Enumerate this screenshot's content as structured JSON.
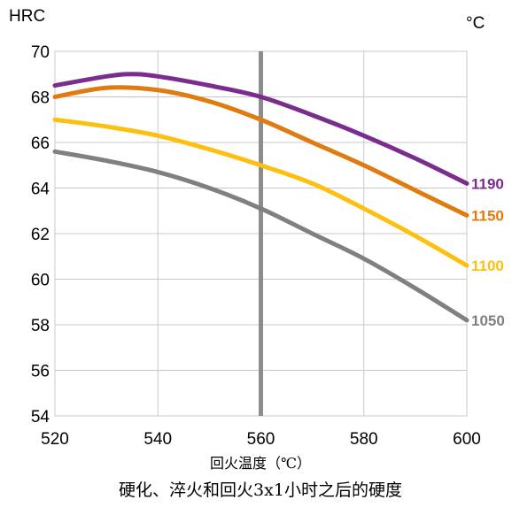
{
  "chart_data": {
    "type": "line",
    "title": "",
    "ylabel": "HRC",
    "series_unit": "°C",
    "xlabel": "回火温度（℃）",
    "caption": "硬化、淬火和回火3x1小时之后的硬度",
    "xlim": [
      520,
      600
    ],
    "ylim": [
      54,
      70
    ],
    "x_ticks": [
      520,
      540,
      560,
      580,
      600
    ],
    "y_ticks": [
      54,
      56,
      58,
      60,
      62,
      64,
      66,
      68,
      70
    ],
    "grid": true,
    "marker_line_x": 560,
    "marker_line_color": "#8c8c8c",
    "series": [
      {
        "name": "1190",
        "color": "#7b2d8e",
        "x": [
          520,
          530,
          535,
          540,
          550,
          560,
          570,
          580,
          590,
          600
        ],
        "y": [
          68.5,
          68.9,
          69.0,
          68.9,
          68.5,
          68.0,
          67.2,
          66.3,
          65.3,
          64.2
        ]
      },
      {
        "name": "1150",
        "color": "#e07b10",
        "x": [
          520,
          530,
          540,
          550,
          560,
          570,
          580,
          590,
          600
        ],
        "y": [
          68.0,
          68.4,
          68.3,
          67.8,
          67.0,
          66.0,
          65.0,
          63.9,
          62.8
        ]
      },
      {
        "name": "1100",
        "color": "#fdc010",
        "x": [
          520,
          530,
          540,
          550,
          560,
          570,
          580,
          590,
          600
        ],
        "y": [
          67.0,
          66.7,
          66.3,
          65.7,
          65.0,
          64.2,
          63.1,
          61.9,
          60.6
        ]
      },
      {
        "name": "1050",
        "color": "#808080",
        "x": [
          520,
          530,
          540,
          550,
          560,
          570,
          580,
          590,
          600
        ],
        "y": [
          65.6,
          65.2,
          64.7,
          64.0,
          63.1,
          62.0,
          60.9,
          59.6,
          58.2
        ]
      }
    ]
  }
}
